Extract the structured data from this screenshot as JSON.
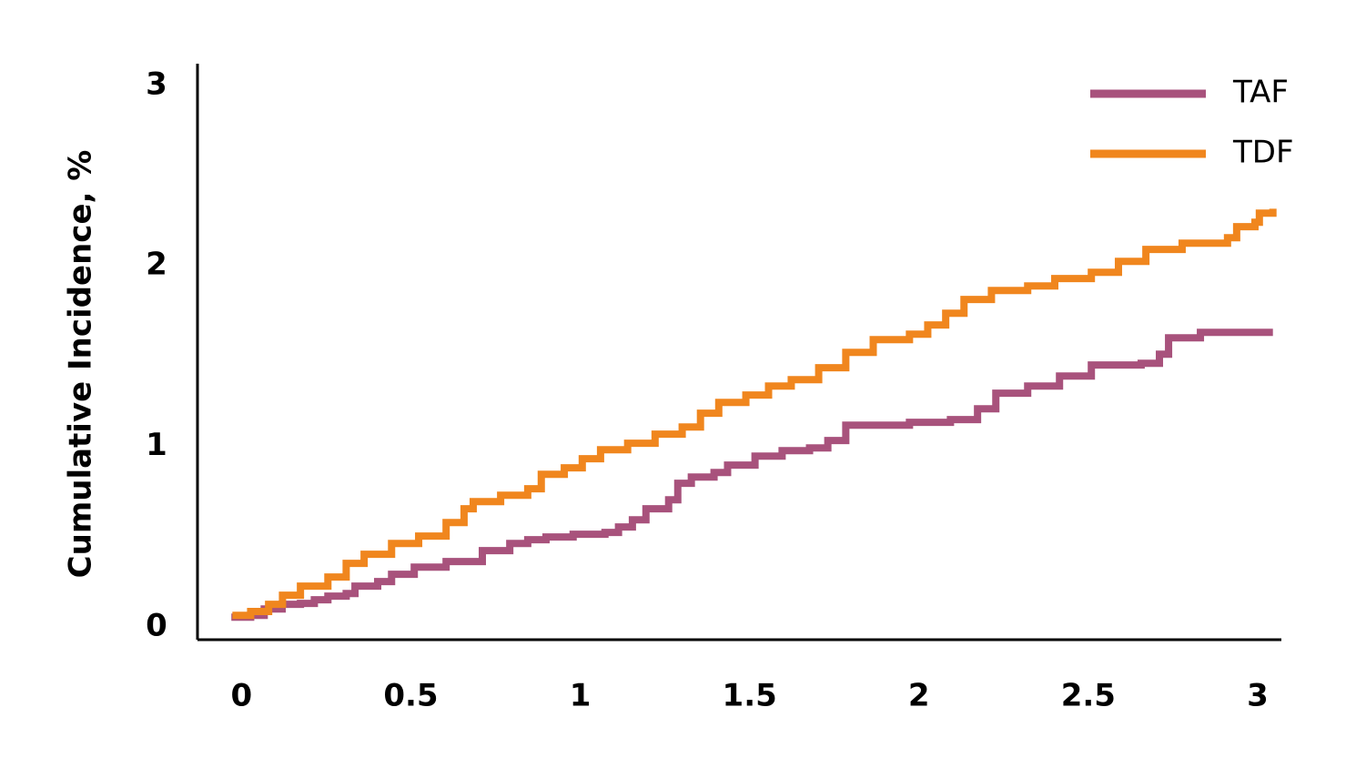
{
  "chart_data": {
    "type": "step",
    "y_label": "Cumulative Incidence, %",
    "xlim": [
      -0.13,
      3.07
    ],
    "ylim": [
      -0.07,
      3.12
    ],
    "xticks": [
      0,
      0.5,
      1,
      1.5,
      2,
      2.5,
      3
    ],
    "yticks": [
      0,
      1,
      2,
      3
    ],
    "legend": "top-right",
    "series": [
      {
        "name": "TAF",
        "color": "#a8527c",
        "x": [
          -0.03,
          0.027,
          0.067,
          0.12,
          0.174,
          0.215,
          0.255,
          0.309,
          0.335,
          0.402,
          0.443,
          0.51,
          0.604,
          0.711,
          0.792,
          0.845,
          0.899,
          0.979,
          1.073,
          1.113,
          1.154,
          1.194,
          1.261,
          1.288,
          1.328,
          1.395,
          1.435,
          1.516,
          1.596,
          1.677,
          1.731,
          1.784,
          1.972,
          2.093,
          2.173,
          2.227,
          2.321,
          2.415,
          2.509,
          2.656,
          2.71,
          2.737,
          2.831,
          3.045
        ],
        "values": [
          0.055,
          0.065,
          0.1,
          0.126,
          0.131,
          0.151,
          0.171,
          0.186,
          0.227,
          0.252,
          0.292,
          0.332,
          0.363,
          0.423,
          0.463,
          0.484,
          0.499,
          0.514,
          0.524,
          0.554,
          0.594,
          0.655,
          0.705,
          0.796,
          0.831,
          0.856,
          0.897,
          0.947,
          0.977,
          0.992,
          1.033,
          1.118,
          1.134,
          1.149,
          1.209,
          1.295,
          1.335,
          1.39,
          1.451,
          1.461,
          1.511,
          1.602,
          1.632,
          1.632
        ]
      },
      {
        "name": "TDF",
        "color": "#f0861e",
        "x": [
          -0.027,
          0.027,
          0.08,
          0.121,
          0.174,
          0.255,
          0.309,
          0.362,
          0.443,
          0.523,
          0.604,
          0.657,
          0.684,
          0.765,
          0.845,
          0.885,
          0.953,
          1.006,
          1.06,
          1.14,
          1.221,
          1.301,
          1.355,
          1.409,
          1.489,
          1.556,
          1.623,
          1.704,
          1.784,
          1.865,
          1.972,
          2.026,
          2.079,
          2.133,
          2.214,
          2.321,
          2.401,
          2.509,
          2.589,
          2.67,
          2.777,
          2.911,
          2.938,
          2.992,
          3.005,
          3.045
        ],
        "values": [
          0.065,
          0.086,
          0.126,
          0.176,
          0.227,
          0.277,
          0.353,
          0.403,
          0.463,
          0.504,
          0.579,
          0.655,
          0.695,
          0.73,
          0.766,
          0.846,
          0.882,
          0.932,
          0.982,
          1.018,
          1.068,
          1.108,
          1.184,
          1.244,
          1.285,
          1.335,
          1.37,
          1.436,
          1.521,
          1.592,
          1.622,
          1.673,
          1.738,
          1.814,
          1.864,
          1.889,
          1.93,
          1.965,
          2.025,
          2.091,
          2.126,
          2.156,
          2.217,
          2.242,
          2.292,
          2.317
        ]
      }
    ]
  }
}
